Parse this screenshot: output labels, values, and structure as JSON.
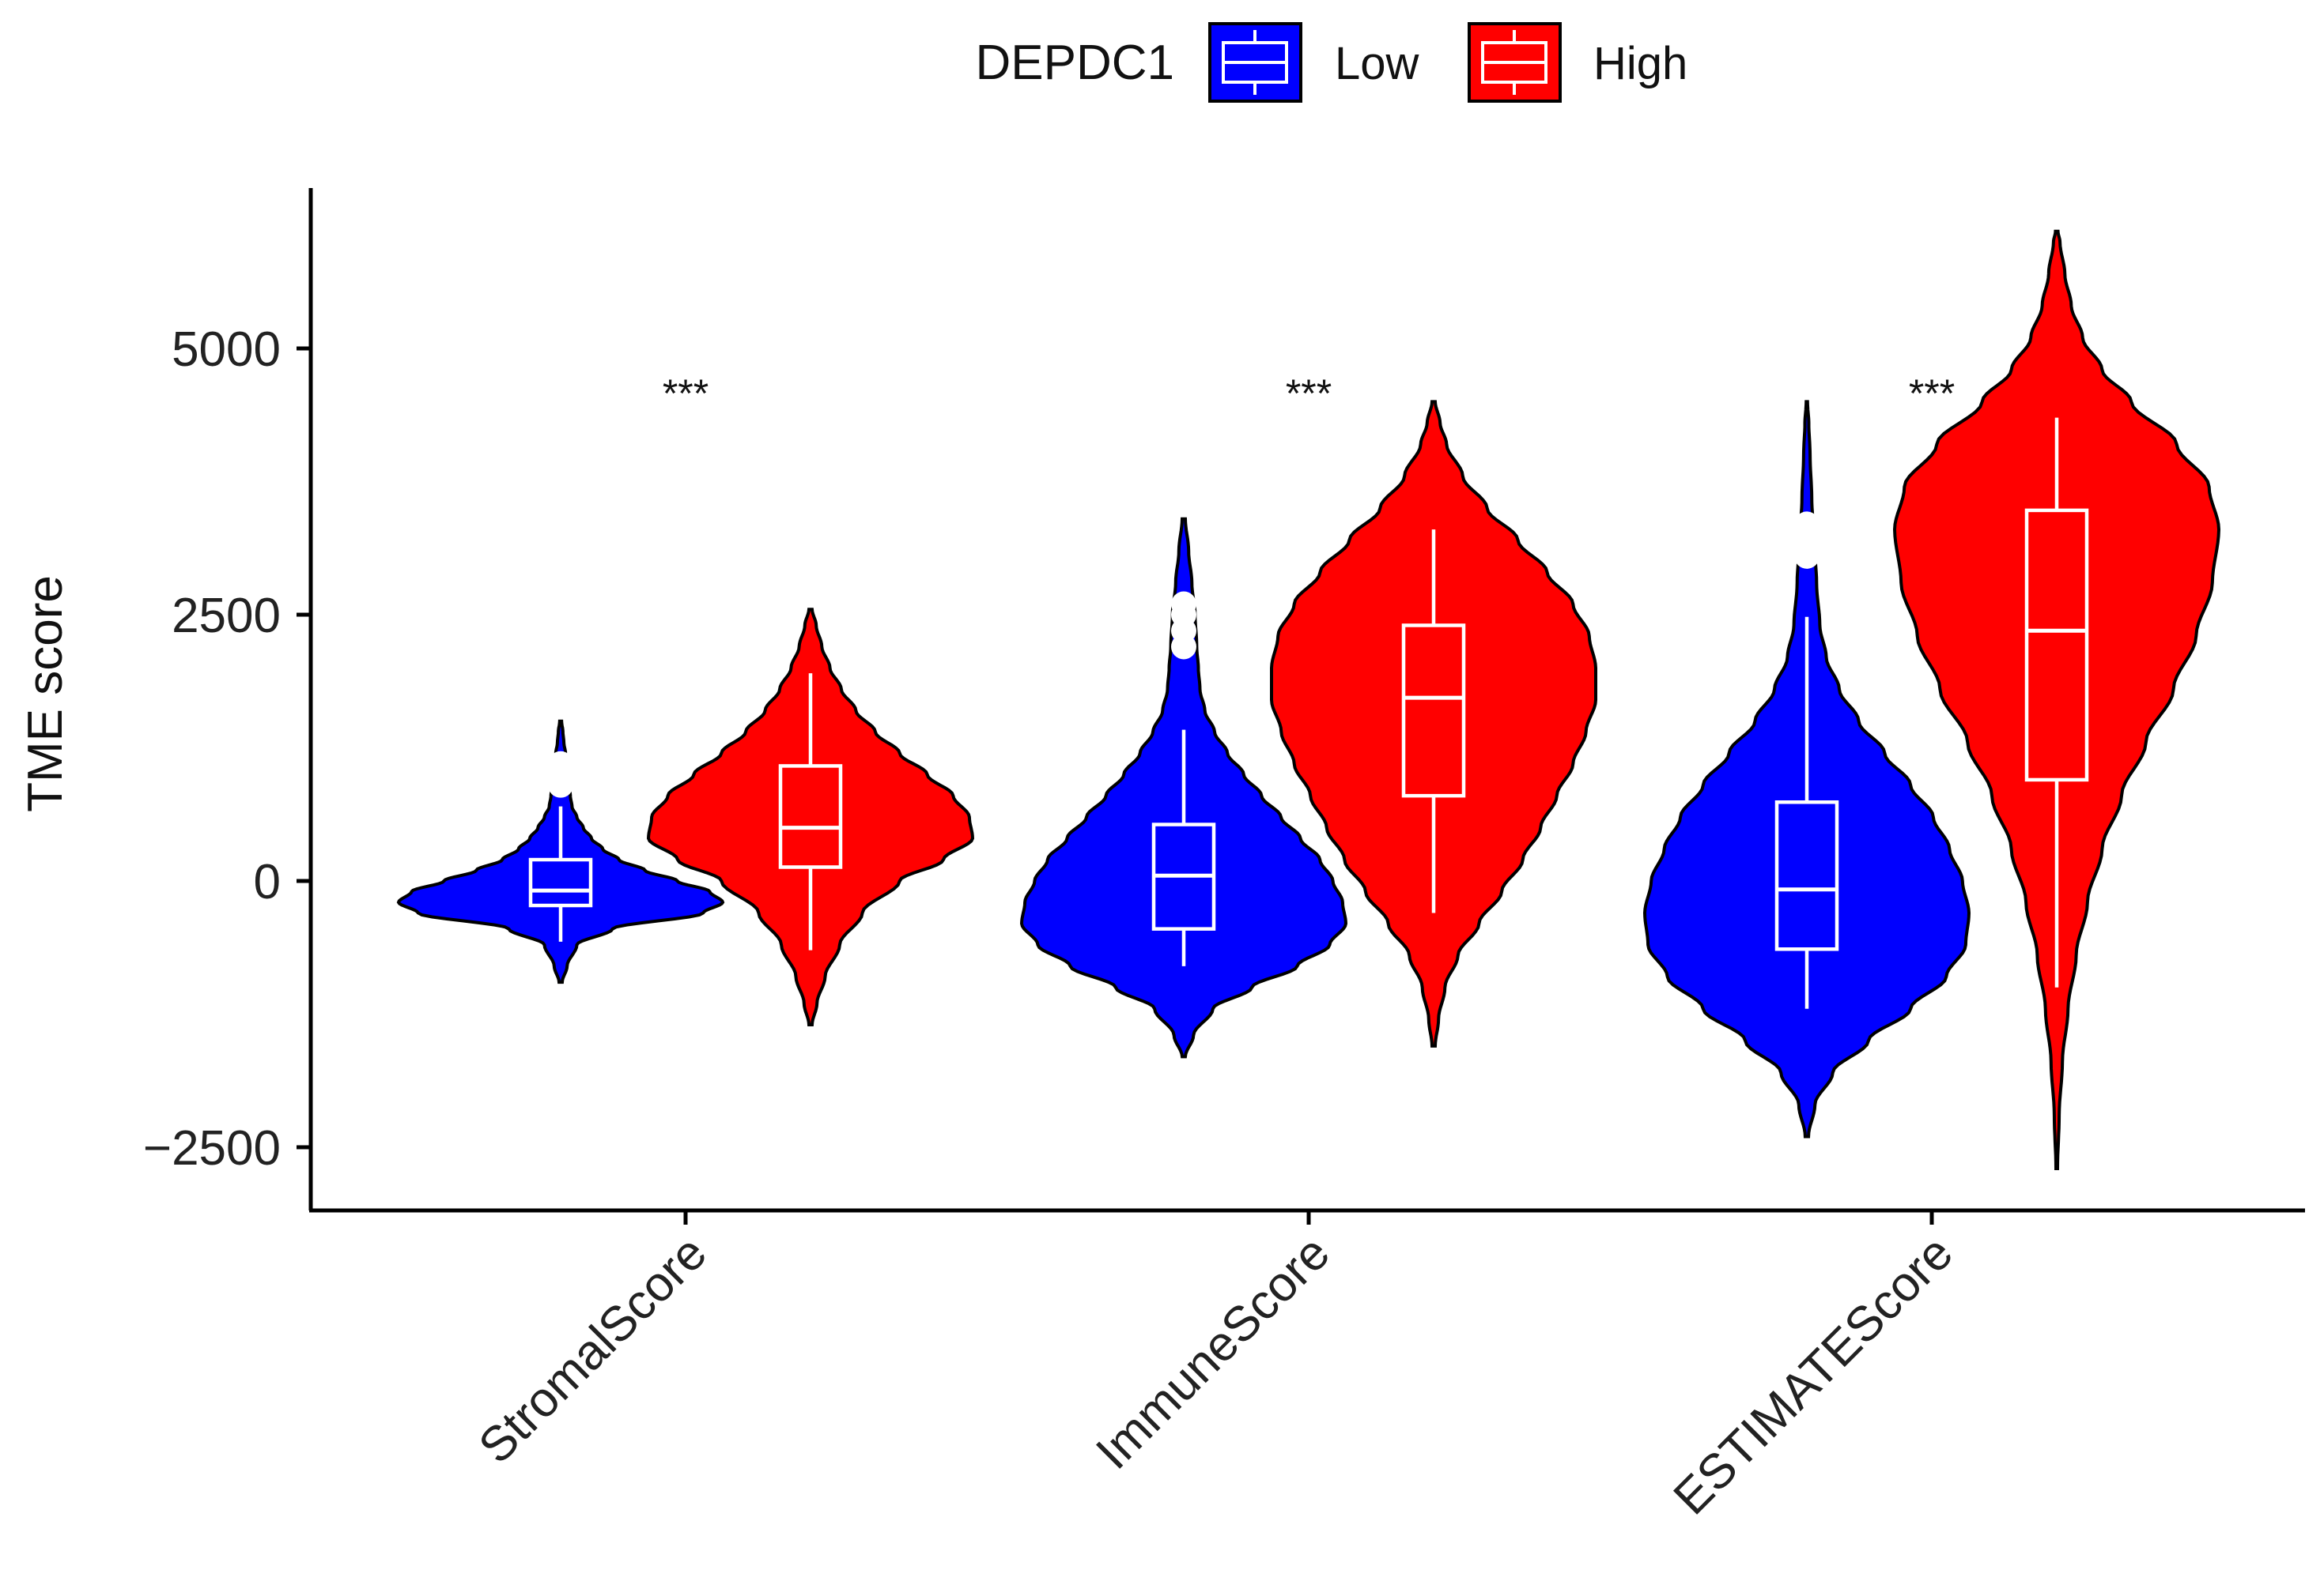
{
  "chart_data": {
    "type": "violin",
    "xlabel": "",
    "ylabel": "TME score",
    "yticks": [
      -2500,
      0,
      2500,
      5000
    ],
    "ylim": [
      -3100,
      6450
    ],
    "legend": {
      "title": "DEPDC1",
      "position": "top",
      "entries": [
        {
          "name": "Low",
          "color": "#0000ff"
        },
        {
          "name": "High",
          "color": "#ff0000"
        }
      ]
    },
    "categories": [
      "StromalScore",
      "ImmuneScore",
      "ESTIMATEScore"
    ],
    "significance": [
      "***",
      "***",
      "***"
    ],
    "groups": [
      {
        "category": "StromalScore",
        "series": [
          {
            "name": "Low",
            "color": "#0000ff",
            "min": -950,
            "max": 1500,
            "box": {
              "q1": -230,
              "median": -90,
              "q3": 200,
              "whisker_low": -570,
              "whisker_high": 700
            },
            "outliers": [
              900,
              1000,
              1100
            ],
            "density": [
              [
                -950,
                0.01
              ],
              [
                -800,
                0.04
              ],
              [
                -600,
                0.1
              ],
              [
                -450,
                0.32
              ],
              [
                -300,
                0.88
              ],
              [
                -200,
                1.0
              ],
              [
                -100,
                0.92
              ],
              [
                0,
                0.72
              ],
              [
                100,
                0.52
              ],
              [
                200,
                0.36
              ],
              [
                300,
                0.26
              ],
              [
                400,
                0.19
              ],
              [
                500,
                0.14
              ],
              [
                600,
                0.1
              ],
              [
                700,
                0.07
              ],
              [
                800,
                0.06
              ],
              [
                900,
                0.05
              ],
              [
                1000,
                0.045
              ],
              [
                1100,
                0.04
              ],
              [
                1200,
                0.03
              ],
              [
                1300,
                0.02
              ],
              [
                1400,
                0.014
              ],
              [
                1500,
                0.006
              ]
            ]
          },
          {
            "name": "High",
            "color": "#ff0000",
            "min": -1350,
            "max": 2550,
            "box": {
              "q1": 130,
              "median": 500,
              "q3": 1080,
              "whisker_low": -650,
              "whisker_high": 1950
            },
            "outliers": [],
            "density": [
              [
                -1350,
                0.01
              ],
              [
                -1150,
                0.04
              ],
              [
                -900,
                0.09
              ],
              [
                -600,
                0.18
              ],
              [
                -300,
                0.32
              ],
              [
                0,
                0.55
              ],
              [
                200,
                0.82
              ],
              [
                400,
                1.0
              ],
              [
                600,
                0.98
              ],
              [
                800,
                0.88
              ],
              [
                1000,
                0.72
              ],
              [
                1200,
                0.55
              ],
              [
                1400,
                0.4
              ],
              [
                1600,
                0.28
              ],
              [
                1800,
                0.19
              ],
              [
                2000,
                0.12
              ],
              [
                2200,
                0.07
              ],
              [
                2400,
                0.035
              ],
              [
                2550,
                0.01
              ]
            ]
          }
        ]
      },
      {
        "category": "ImmuneScore",
        "series": [
          {
            "name": "Low",
            "color": "#0000ff",
            "min": -1650,
            "max": 3400,
            "box": {
              "q1": -450,
              "median": 50,
              "q3": 530,
              "whisker_low": -800,
              "whisker_high": 1420
            },
            "outliers": [
              2200,
              2350,
              2500,
              2600
            ],
            "density": [
              [
                -1650,
                0.01
              ],
              [
                -1450,
                0.06
              ],
              [
                -1200,
                0.18
              ],
              [
                -1000,
                0.42
              ],
              [
                -800,
                0.7
              ],
              [
                -600,
                0.9
              ],
              [
                -400,
                1.0
              ],
              [
                -200,
                0.98
              ],
              [
                0,
                0.92
              ],
              [
                200,
                0.84
              ],
              [
                400,
                0.72
              ],
              [
                600,
                0.6
              ],
              [
                800,
                0.48
              ],
              [
                1000,
                0.37
              ],
              [
                1200,
                0.27
              ],
              [
                1400,
                0.19
              ],
              [
                1600,
                0.13
              ],
              [
                1800,
                0.1
              ],
              [
                2000,
                0.09
              ],
              [
                2200,
                0.08
              ],
              [
                2500,
                0.07
              ],
              [
                2800,
                0.05
              ],
              [
                3100,
                0.03
              ],
              [
                3400,
                0.01
              ]
            ]
          },
          {
            "name": "High",
            "color": "#ff0000",
            "min": -1550,
            "max": 4500,
            "box": {
              "q1": 800,
              "median": 1720,
              "q3": 2400,
              "whisker_low": -300,
              "whisker_high": 3300
            },
            "outliers": [],
            "density": [
              [
                -1550,
                0.01
              ],
              [
                -1300,
                0.03
              ],
              [
                -1000,
                0.07
              ],
              [
                -700,
                0.15
              ],
              [
                -400,
                0.28
              ],
              [
                -100,
                0.42
              ],
              [
                200,
                0.55
              ],
              [
                500,
                0.66
              ],
              [
                800,
                0.76
              ],
              [
                1100,
                0.86
              ],
              [
                1400,
                0.94
              ],
              [
                1700,
                1.0
              ],
              [
                2000,
                1.0
              ],
              [
                2300,
                0.96
              ],
              [
                2600,
                0.86
              ],
              [
                2900,
                0.7
              ],
              [
                3200,
                0.52
              ],
              [
                3500,
                0.33
              ],
              [
                3800,
                0.18
              ],
              [
                4100,
                0.08
              ],
              [
                4300,
                0.04
              ],
              [
                4500,
                0.01
              ]
            ]
          }
        ]
      },
      {
        "category": "ESTIMATEScore",
        "series": [
          {
            "name": "Low",
            "color": "#0000ff",
            "min": -2400,
            "max": 4500,
            "box": {
              "q1": -640,
              "median": -80,
              "q3": 740,
              "whisker_low": -1200,
              "whisker_high": 2480
            },
            "outliers": [
              3050,
              3200,
              3350
            ],
            "density": [
              [
                -2400,
                0.01
              ],
              [
                -2100,
                0.05
              ],
              [
                -1800,
                0.16
              ],
              [
                -1500,
                0.38
              ],
              [
                -1200,
                0.64
              ],
              [
                -900,
                0.86
              ],
              [
                -600,
                0.98
              ],
              [
                -300,
                1.0
              ],
              [
                0,
                0.96
              ],
              [
                300,
                0.88
              ],
              [
                600,
                0.78
              ],
              [
                900,
                0.64
              ],
              [
                1200,
                0.48
              ],
              [
                1500,
                0.32
              ],
              [
                1800,
                0.2
              ],
              [
                2100,
                0.12
              ],
              [
                2400,
                0.08
              ],
              [
                2800,
                0.06
              ],
              [
                3200,
                0.045
              ],
              [
                3600,
                0.03
              ],
              [
                4000,
                0.02
              ],
              [
                4300,
                0.012
              ],
              [
                4500,
                0.004
              ]
            ]
          },
          {
            "name": "High",
            "color": "#ff0000",
            "min": -2700,
            "max": 6100,
            "box": {
              "q1": 950,
              "median": 2350,
              "q3": 3480,
              "whisker_low": -1000,
              "whisker_high": 4350
            },
            "outliers": [],
            "density": [
              [
                -2700,
                0.005
              ],
              [
                -2200,
                0.015
              ],
              [
                -1700,
                0.035
              ],
              [
                -1200,
                0.07
              ],
              [
                -700,
                0.12
              ],
              [
                -200,
                0.19
              ],
              [
                300,
                0.28
              ],
              [
                800,
                0.4
              ],
              [
                1300,
                0.55
              ],
              [
                1800,
                0.72
              ],
              [
                2300,
                0.86
              ],
              [
                2800,
                0.96
              ],
              [
                3300,
                1.0
              ],
              [
                3700,
                0.94
              ],
              [
                4100,
                0.74
              ],
              [
                4500,
                0.46
              ],
              [
                4800,
                0.28
              ],
              [
                5100,
                0.16
              ],
              [
                5400,
                0.09
              ],
              [
                5700,
                0.05
              ],
              [
                6000,
                0.02
              ],
              [
                6100,
                0.008
              ]
            ]
          }
        ]
      }
    ]
  }
}
